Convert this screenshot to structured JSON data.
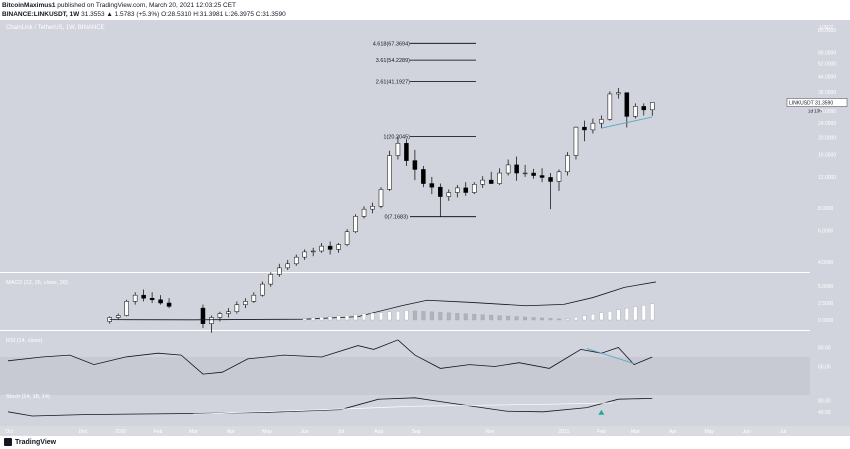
{
  "header": {
    "author": "BitcoinMaximus1",
    "published_text": "published on TradingView.com, March 20, 2021 12:03:25 CET",
    "symbol_line": "BINANCE:LINKUSDT, 1W",
    "ohlc": "31.3553 ▲ 1.5783 (+5.3%) O:28.5310 H:31.3981 L:26.3975 C:31.3590"
  },
  "chart_title": "ChainLink / TetherUS, 1W, BINANCE",
  "price_axis_unit": "USDT",
  "price_tag": {
    "symbol": "LINKUSDT",
    "value": "31.3590",
    "countdown": "1d 13h"
  },
  "colors": {
    "background": "#d1d4dc",
    "panel_bg": "#d9dbe1",
    "rsi_band": "#c8cad3",
    "candle_up": "#ffffff",
    "candle_down": "#000000",
    "fib": "#000000",
    "trendline": "#4fa3c7",
    "signal": "#26a69a"
  },
  "chart_data": [
    {
      "type": "candlestick",
      "title": "ChainLink / TetherUS, 1W, BINANCE",
      "y_scale": "log",
      "y_ticks": [
        "4.0000",
        "6.0000",
        "8.0000",
        "12.0000",
        "16.0000",
        "20.0000",
        "24.0000",
        "28.0000",
        "36.0000",
        "44.0000",
        "52.0000",
        "60.0000",
        "80.0000"
      ],
      "x_ticks": [
        "Oct",
        "Dec",
        "2020",
        "Feb",
        "Mar",
        "Apr",
        "May",
        "Jun",
        "Jul",
        "Aug",
        "Sep",
        "Nov",
        "2021",
        "Feb",
        "Mar",
        "Apr",
        "May",
        "Jun",
        "Jul"
      ],
      "candles": [
        {
          "t": "2019-12-23",
          "o": 1.85,
          "h": 1.98,
          "l": 1.8,
          "c": 1.95
        },
        {
          "t": "2019-12-30",
          "o": 1.95,
          "h": 2.05,
          "l": 1.9,
          "c": 2.0
        },
        {
          "t": "2020-01-06",
          "o": 2.0,
          "h": 2.45,
          "l": 1.98,
          "c": 2.4
        },
        {
          "t": "2020-01-13",
          "o": 2.4,
          "h": 2.7,
          "l": 2.3,
          "c": 2.6
        },
        {
          "t": "2020-01-20",
          "o": 2.6,
          "h": 2.8,
          "l": 2.4,
          "c": 2.5
        },
        {
          "t": "2020-01-27",
          "o": 2.5,
          "h": 2.7,
          "l": 2.35,
          "c": 2.45
        },
        {
          "t": "2020-02-03",
          "o": 2.45,
          "h": 2.6,
          "l": 2.3,
          "c": 2.35
        },
        {
          "t": "2020-02-10",
          "o": 2.35,
          "h": 2.5,
          "l": 2.2,
          "c": 2.25
        },
        {
          "t": "2020-03-09",
          "o": 2.2,
          "h": 2.3,
          "l": 1.7,
          "c": 1.8
        },
        {
          "t": "2020-03-16",
          "o": 1.8,
          "h": 2.0,
          "l": 1.6,
          "c": 1.95
        },
        {
          "t": "2020-03-23",
          "o": 1.95,
          "h": 2.1,
          "l": 1.85,
          "c": 2.05
        },
        {
          "t": "2020-03-30",
          "o": 2.05,
          "h": 2.2,
          "l": 1.95,
          "c": 2.1
        },
        {
          "t": "2020-04-06",
          "o": 2.1,
          "h": 2.4,
          "l": 2.05,
          "c": 2.3
        },
        {
          "t": "2020-04-13",
          "o": 2.3,
          "h": 2.5,
          "l": 2.2,
          "c": 2.4
        },
        {
          "t": "2020-04-20",
          "o": 2.4,
          "h": 2.7,
          "l": 2.35,
          "c": 2.6
        },
        {
          "t": "2020-04-27",
          "o": 2.6,
          "h": 3.1,
          "l": 2.55,
          "c": 3.0
        },
        {
          "t": "2020-05-04",
          "o": 3.0,
          "h": 3.5,
          "l": 2.9,
          "c": 3.4
        },
        {
          "t": "2020-05-11",
          "o": 3.4,
          "h": 3.9,
          "l": 3.3,
          "c": 3.7
        },
        {
          "t": "2020-05-18",
          "o": 3.7,
          "h": 4.1,
          "l": 3.6,
          "c": 3.9
        },
        {
          "t": "2020-05-25",
          "o": 3.9,
          "h": 4.4,
          "l": 3.8,
          "c": 4.25
        },
        {
          "t": "2020-06-01",
          "o": 4.25,
          "h": 4.7,
          "l": 4.1,
          "c": 4.55
        },
        {
          "t": "2020-06-08",
          "o": 4.55,
          "h": 4.8,
          "l": 4.3,
          "c": 4.6
        },
        {
          "t": "2020-06-15",
          "o": 4.6,
          "h": 5.1,
          "l": 4.5,
          "c": 4.9
        },
        {
          "t": "2020-06-22",
          "o": 4.9,
          "h": 5.2,
          "l": 4.4,
          "c": 4.7
        },
        {
          "t": "2020-06-29",
          "o": 4.7,
          "h": 5.1,
          "l": 4.5,
          "c": 5.0
        },
        {
          "t": "2020-07-06",
          "o": 5.0,
          "h": 6.1,
          "l": 4.9,
          "c": 5.9
        },
        {
          "t": "2020-07-13",
          "o": 5.9,
          "h": 7.4,
          "l": 5.8,
          "c": 7.2
        },
        {
          "t": "2020-07-20",
          "o": 7.2,
          "h": 8.2,
          "l": 7.0,
          "c": 7.9
        },
        {
          "t": "2020-07-27",
          "o": 7.9,
          "h": 8.6,
          "l": 7.5,
          "c": 8.2
        },
        {
          "t": "2020-08-03",
          "o": 8.2,
          "h": 10.5,
          "l": 8.0,
          "c": 10.2
        },
        {
          "t": "2020-08-10",
          "o": 10.2,
          "h": 16.8,
          "l": 10.0,
          "c": 15.8
        },
        {
          "t": "2020-08-17",
          "o": 15.8,
          "h": 20.2,
          "l": 15.0,
          "c": 18.5
        },
        {
          "t": "2020-08-24",
          "o": 18.5,
          "h": 19.5,
          "l": 13.8,
          "c": 14.8
        },
        {
          "t": "2020-08-31",
          "o": 14.8,
          "h": 17.0,
          "l": 11.5,
          "c": 13.2
        },
        {
          "t": "2020-09-07",
          "o": 13.2,
          "h": 13.8,
          "l": 10.5,
          "c": 11.0
        },
        {
          "t": "2020-09-14",
          "o": 11.0,
          "h": 12.0,
          "l": 9.6,
          "c": 10.5
        },
        {
          "t": "2020-09-21",
          "o": 10.5,
          "h": 11.0,
          "l": 7.17,
          "c": 9.3
        },
        {
          "t": "2020-09-28",
          "o": 9.3,
          "h": 10.2,
          "l": 8.8,
          "c": 9.8
        },
        {
          "t": "2020-10-05",
          "o": 9.8,
          "h": 10.8,
          "l": 9.2,
          "c": 10.4
        },
        {
          "t": "2020-10-12",
          "o": 10.4,
          "h": 11.2,
          "l": 9.4,
          "c": 9.8
        },
        {
          "t": "2020-10-19",
          "o": 9.8,
          "h": 11.2,
          "l": 9.6,
          "c": 10.9
        },
        {
          "t": "2020-10-26",
          "o": 10.9,
          "h": 12.1,
          "l": 10.4,
          "c": 11.5
        },
        {
          "t": "2020-11-02",
          "o": 11.5,
          "h": 12.8,
          "l": 11.0,
          "c": 11.0
        },
        {
          "t": "2020-11-09",
          "o": 11.0,
          "h": 13.4,
          "l": 10.8,
          "c": 12.6
        },
        {
          "t": "2020-11-16",
          "o": 12.6,
          "h": 15.0,
          "l": 12.2,
          "c": 14.0
        },
        {
          "t": "2020-11-23",
          "o": 14.0,
          "h": 15.6,
          "l": 11.4,
          "c": 12.6
        },
        {
          "t": "2020-11-30",
          "o": 12.6,
          "h": 14.0,
          "l": 12.0,
          "c": 12.6
        },
        {
          "t": "2020-12-07",
          "o": 12.6,
          "h": 13.3,
          "l": 11.7,
          "c": 12.2
        },
        {
          "t": "2020-12-14",
          "o": 12.2,
          "h": 13.4,
          "l": 11.2,
          "c": 11.9
        },
        {
          "t": "2020-12-21",
          "o": 11.9,
          "h": 12.6,
          "l": 7.9,
          "c": 11.3
        },
        {
          "t": "2020-12-28",
          "o": 11.3,
          "h": 13.2,
          "l": 10.0,
          "c": 12.8
        },
        {
          "t": "2021-01-04",
          "o": 12.8,
          "h": 16.5,
          "l": 12.2,
          "c": 15.8
        },
        {
          "t": "2021-01-11",
          "o": 15.8,
          "h": 23.0,
          "l": 15.0,
          "c": 22.8
        },
        {
          "t": "2021-01-18",
          "o": 22.8,
          "h": 24.8,
          "l": 19.0,
          "c": 22.0
        },
        {
          "t": "2021-01-25",
          "o": 22.0,
          "h": 25.5,
          "l": 21.0,
          "c": 24.0
        },
        {
          "t": "2021-02-01",
          "o": 24.0,
          "h": 26.5,
          "l": 22.5,
          "c": 25.2
        },
        {
          "t": "2021-02-08",
          "o": 25.2,
          "h": 36.2,
          "l": 24.8,
          "c": 35.0
        },
        {
          "t": "2021-02-15",
          "o": 35.0,
          "h": 37.8,
          "l": 33.0,
          "c": 35.6
        },
        {
          "t": "2021-02-22",
          "o": 35.6,
          "h": 35.6,
          "l": 22.7,
          "c": 26.2
        },
        {
          "t": "2021-03-01",
          "o": 26.2,
          "h": 31.0,
          "l": 25.5,
          "c": 29.8
        },
        {
          "t": "2021-03-08",
          "o": 29.8,
          "h": 31.0,
          "l": 26.5,
          "c": 28.5
        },
        {
          "t": "2021-03-15",
          "o": 28.53,
          "h": 31.4,
          "l": 26.4,
          "c": 31.36
        }
      ],
      "fib_levels": [
        {
          "label": "0(7.1683)",
          "value": 7.1683
        },
        {
          "label": "1(20.2045)",
          "value": 20.2045
        },
        {
          "label": "2.61(41.1927)",
          "value": 41.1927
        },
        {
          "label": "3.61(54.2289)",
          "value": 54.2289
        },
        {
          "label": "4.618(67.3694)",
          "value": 67.3694
        }
      ]
    },
    {
      "type": "line",
      "title": "MACD (12, 26, close, 26)",
      "y_ticks": [
        "5.0000",
        "2.5000",
        "0.0000"
      ],
      "note": "histogram in grey/white bars below signal line"
    },
    {
      "type": "line",
      "title": "RSI (14, close)",
      "y_ticks": [
        "80.00",
        "60.00"
      ]
    },
    {
      "type": "line",
      "title": "Stoch (14, 18, 14)",
      "y_ticks": [
        "80.00",
        "40.00"
      ]
    }
  ],
  "footer": {
    "logo_text": "TradingView"
  }
}
